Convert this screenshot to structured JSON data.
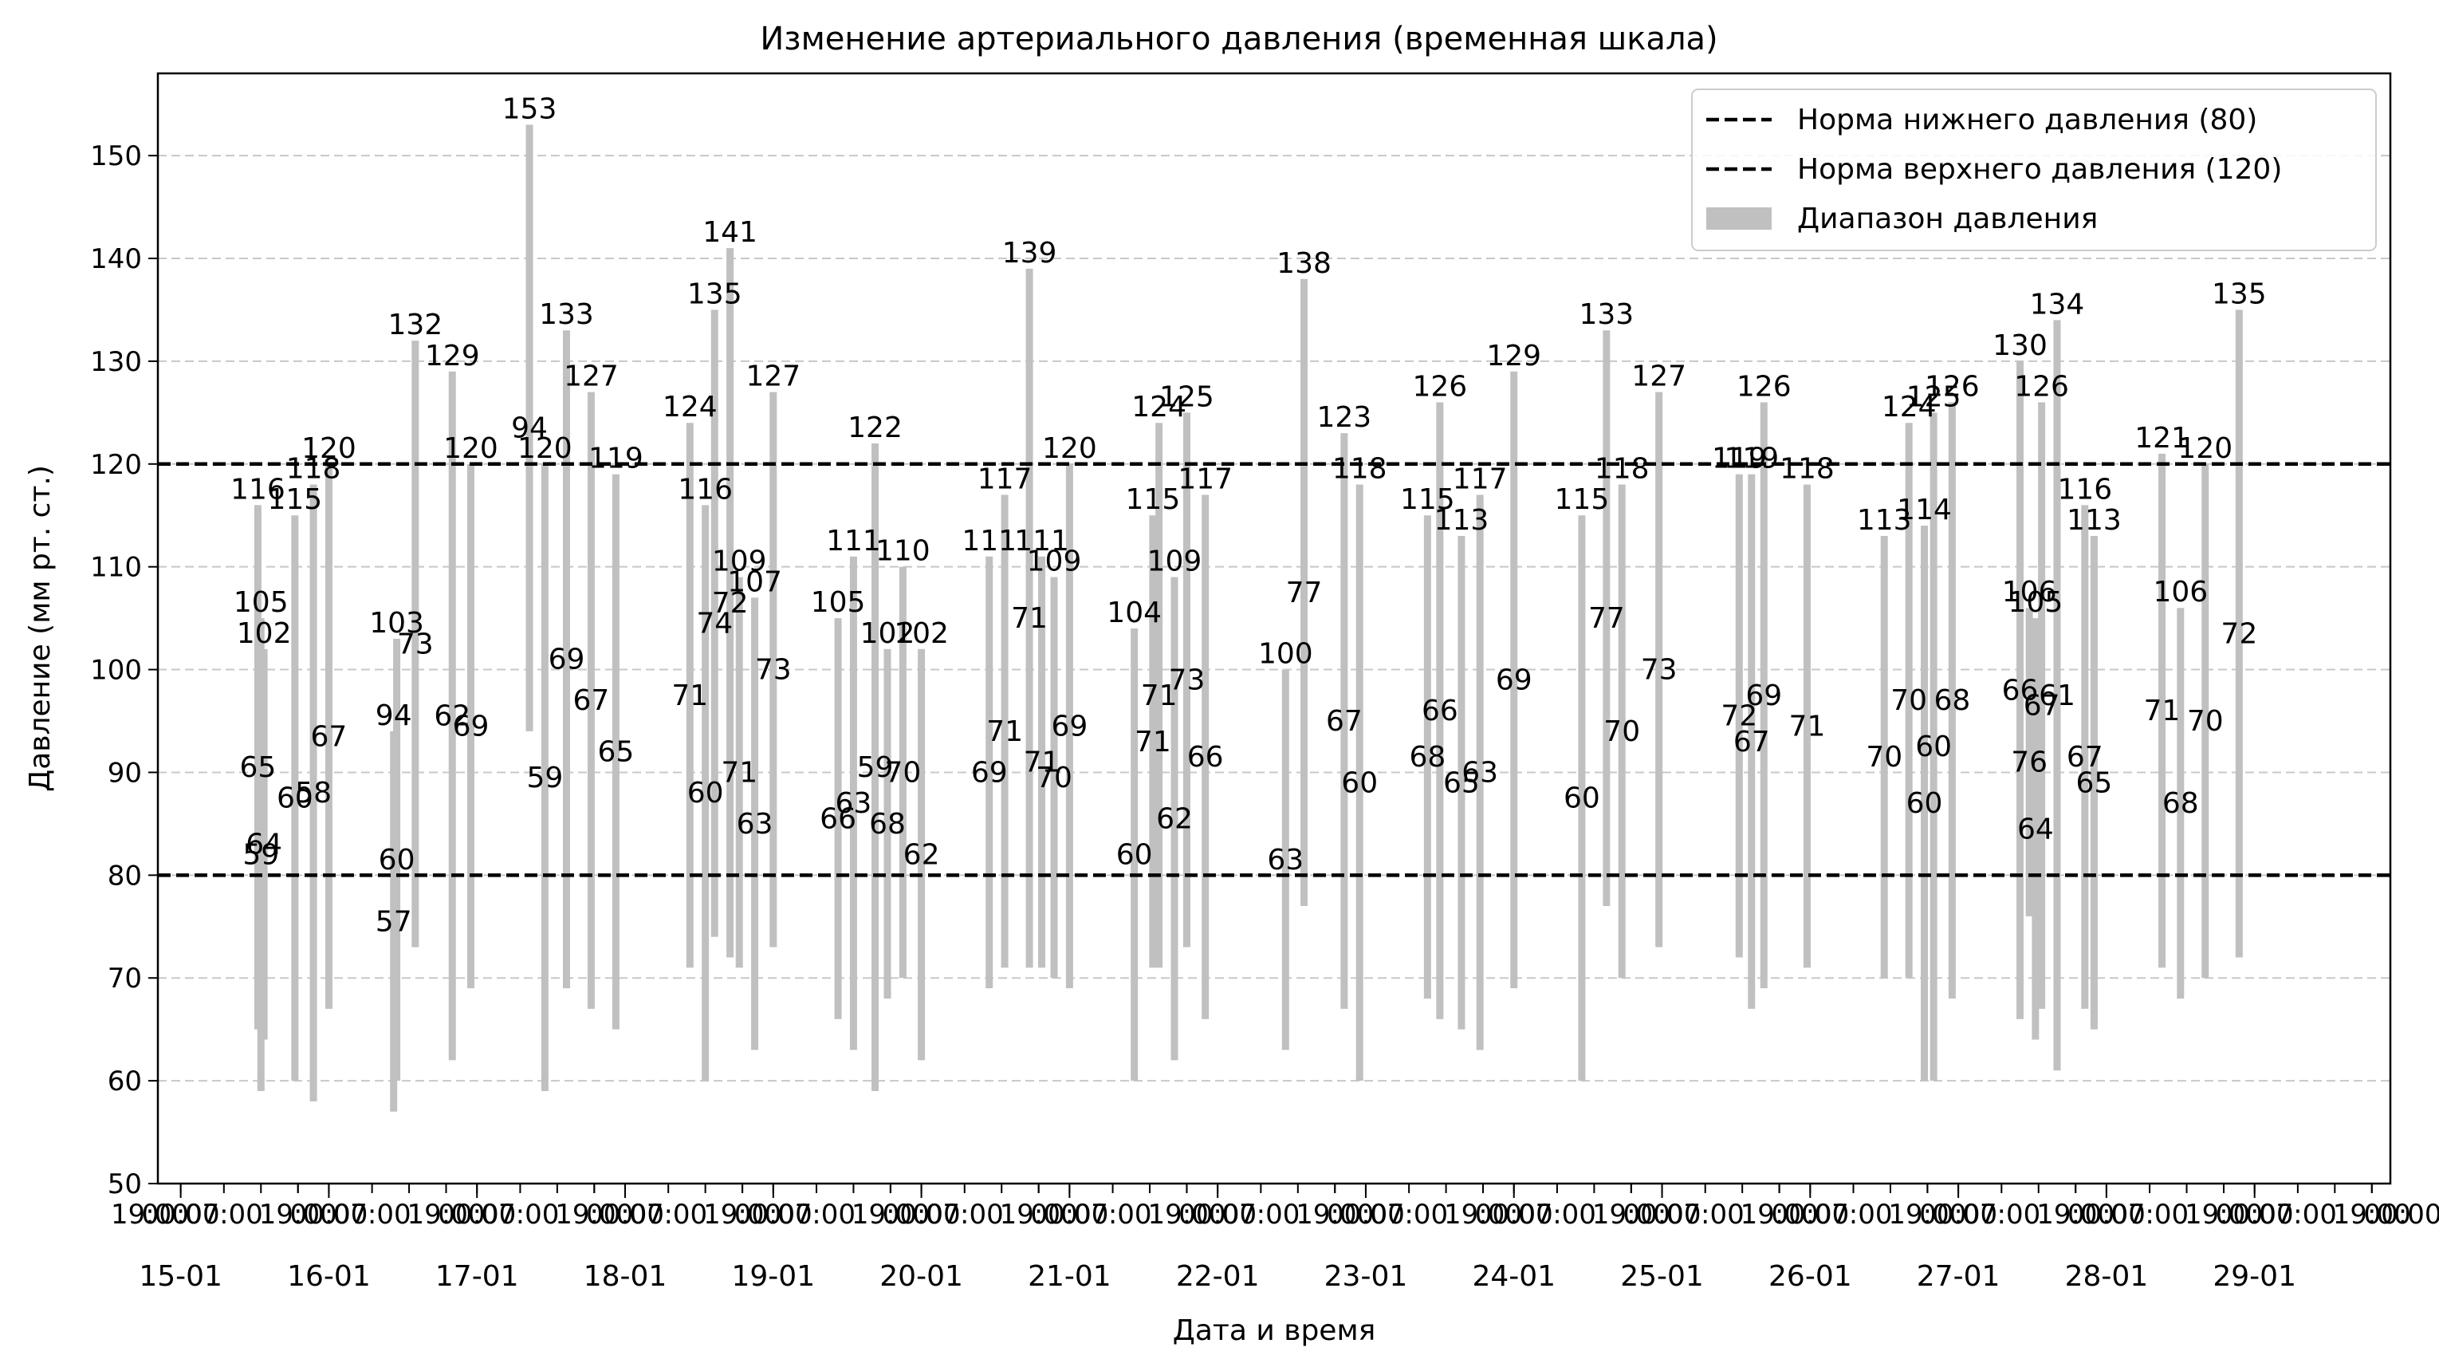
{
  "chart_data": {
    "type": "range-bar",
    "title": "Изменение артериального давления (временная шкала)",
    "xlabel": "Дата и время",
    "ylabel": "Давление (мм рт. ст.)",
    "ylim": [
      50,
      158
    ],
    "yticks": [
      50,
      60,
      70,
      80,
      90,
      100,
      110,
      120,
      130,
      140,
      150
    ],
    "xlim": [
      "2024-01-14T20:18",
      "2024-01-29T22:00"
    ],
    "xticks_dates": [
      "15-01",
      "16-01",
      "17-01",
      "18-01",
      "19-01",
      "20-01",
      "21-01",
      "22-01",
      "23-01",
      "24-01",
      "25-01",
      "26-01",
      "27-01",
      "28-01",
      "29-01"
    ],
    "xticks_hours": [
      "19:00",
      "00:00",
      "07:00",
      "13:00",
      "19:00"
    ],
    "grid": "y-dashed",
    "legend_position": "top-right",
    "legend": [
      {
        "label": "Норма нижнего давления (80)",
        "style": "dashed",
        "color": "#000000"
      },
      {
        "label": "Норма верхнего давления (120)",
        "style": "dashed",
        "color": "#000000"
      },
      {
        "label": "Диапазон давления",
        "style": "patch",
        "color": "#c0c0c0"
      }
    ],
    "reference_lines": [
      {
        "name": "Норма нижнего давления (80)",
        "y": 80,
        "color": "#000000"
      },
      {
        "name": "Норма верхнего давления (120)",
        "y": 120,
        "color": "#000000"
      }
    ],
    "bar_color": "#c0c0c0",
    "measurements": [
      {
        "t": "2024-01-15T12:30",
        "systolic": 116,
        "diastolic": 65
      },
      {
        "t": "2024-01-15T13:00",
        "systolic": 105,
        "diastolic": 59
      },
      {
        "t": "2024-01-15T13:30",
        "systolic": 102,
        "diastolic": 64
      },
      {
        "t": "2024-01-15T18:30",
        "systolic": 115,
        "diastolic": 60
      },
      {
        "t": "2024-01-15T21:30",
        "systolic": 118,
        "diastolic": 58
      },
      {
        "t": "2024-01-16T00:00",
        "systolic": 120,
        "diastolic": 67
      },
      {
        "t": "2024-01-16T10:30",
        "systolic": 94,
        "diastolic": 57
      },
      {
        "t": "2024-01-16T11:00",
        "systolic": 103,
        "diastolic": 60
      },
      {
        "t": "2024-01-16T14:00",
        "systolic": 132,
        "diastolic": 73
      },
      {
        "t": "2024-01-16T20:00",
        "systolic": 129,
        "diastolic": 62
      },
      {
        "t": "2024-01-16T23:00",
        "systolic": 120,
        "diastolic": 69
      },
      {
        "t": "2024-01-17T08:30",
        "systolic": 153,
        "diastolic": 94
      },
      {
        "t": "2024-01-17T11:00",
        "systolic": 120,
        "diastolic": 59
      },
      {
        "t": "2024-01-17T14:30",
        "systolic": 133,
        "diastolic": 69
      },
      {
        "t": "2024-01-17T18:30",
        "systolic": 127,
        "diastolic": 67
      },
      {
        "t": "2024-01-17T22:30",
        "systolic": 119,
        "diastolic": 65
      },
      {
        "t": "2024-01-18T10:30",
        "systolic": 124,
        "diastolic": 71
      },
      {
        "t": "2024-01-18T13:00",
        "systolic": 116,
        "diastolic": 60
      },
      {
        "t": "2024-01-18T14:30",
        "systolic": 135,
        "diastolic": 74
      },
      {
        "t": "2024-01-18T17:00",
        "systolic": 141,
        "diastolic": 72
      },
      {
        "t": "2024-01-18T18:30",
        "systolic": 109,
        "diastolic": 71
      },
      {
        "t": "2024-01-18T21:00",
        "systolic": 107,
        "diastolic": 63
      },
      {
        "t": "2024-01-19T00:00",
        "systolic": 127,
        "diastolic": 73
      },
      {
        "t": "2024-01-19T10:30",
        "systolic": 105,
        "diastolic": 66
      },
      {
        "t": "2024-01-19T13:00",
        "systolic": 111,
        "diastolic": 63
      },
      {
        "t": "2024-01-19T16:30",
        "systolic": 122,
        "diastolic": 59
      },
      {
        "t": "2024-01-19T18:30",
        "systolic": 102,
        "diastolic": 68
      },
      {
        "t": "2024-01-19T21:00",
        "systolic": 110,
        "diastolic": 70
      },
      {
        "t": "2024-01-20T00:00",
        "systolic": 102,
        "diastolic": 62
      },
      {
        "t": "2024-01-20T11:00",
        "systolic": 111,
        "diastolic": 69
      },
      {
        "t": "2024-01-20T13:30",
        "systolic": 117,
        "diastolic": 71
      },
      {
        "t": "2024-01-20T17:30",
        "systolic": 139,
        "diastolic": 71
      },
      {
        "t": "2024-01-20T19:30",
        "systolic": 111,
        "diastolic": 71
      },
      {
        "t": "2024-01-20T21:30",
        "systolic": 109,
        "diastolic": 70
      },
      {
        "t": "2024-01-21T00:00",
        "systolic": 120,
        "diastolic": 69
      },
      {
        "t": "2024-01-21T10:30",
        "systolic": 104,
        "diastolic": 60
      },
      {
        "t": "2024-01-21T13:30",
        "systolic": 115,
        "diastolic": 71
      },
      {
        "t": "2024-01-21T14:30",
        "systolic": 124,
        "diastolic": 71
      },
      {
        "t": "2024-01-21T17:00",
        "systolic": 109,
        "diastolic": 62
      },
      {
        "t": "2024-01-21T19:00",
        "systolic": 125,
        "diastolic": 73
      },
      {
        "t": "2024-01-21T22:00",
        "systolic": 117,
        "diastolic": 66
      },
      {
        "t": "2024-01-22T11:00",
        "systolic": 100,
        "diastolic": 63
      },
      {
        "t": "2024-01-22T14:00",
        "systolic": 138,
        "diastolic": 77
      },
      {
        "t": "2024-01-22T20:30",
        "systolic": 123,
        "diastolic": 67
      },
      {
        "t": "2024-01-22T23:00",
        "systolic": 118,
        "diastolic": 60
      },
      {
        "t": "2024-01-23T10:00",
        "systolic": 115,
        "diastolic": 68
      },
      {
        "t": "2024-01-23T12:00",
        "systolic": 126,
        "diastolic": 66
      },
      {
        "t": "2024-01-23T15:30",
        "systolic": 113,
        "diastolic": 65
      },
      {
        "t": "2024-01-23T18:30",
        "systolic": 117,
        "diastolic": 63
      },
      {
        "t": "2024-01-24T00:00",
        "systolic": 129,
        "diastolic": 69
      },
      {
        "t": "2024-01-24T11:00",
        "systolic": 115,
        "diastolic": 60
      },
      {
        "t": "2024-01-24T15:00",
        "systolic": 133,
        "diastolic": 77
      },
      {
        "t": "2024-01-24T17:30",
        "systolic": 118,
        "diastolic": 70
      },
      {
        "t": "2024-01-24T23:30",
        "systolic": 127,
        "diastolic": 73
      },
      {
        "t": "2024-01-25T12:30",
        "systolic": 119,
        "diastolic": 72
      },
      {
        "t": "2024-01-25T14:30",
        "systolic": 119,
        "diastolic": 67
      },
      {
        "t": "2024-01-25T16:30",
        "systolic": 126,
        "diastolic": 69
      },
      {
        "t": "2024-01-25T23:30",
        "systolic": 118,
        "diastolic": 71
      },
      {
        "t": "2024-01-26T12:00",
        "systolic": 113,
        "diastolic": 70
      },
      {
        "t": "2024-01-26T16:00",
        "systolic": 124,
        "diastolic": 70
      },
      {
        "t": "2024-01-26T18:30",
        "systolic": 114,
        "diastolic": 60
      },
      {
        "t": "2024-01-26T20:00",
        "systolic": 125,
        "diastolic": 60
      },
      {
        "t": "2024-01-26T23:00",
        "systolic": 126,
        "diastolic": 68
      },
      {
        "t": "2024-01-27T10:00",
        "systolic": 130,
        "diastolic": 66
      },
      {
        "t": "2024-01-27T11:30",
        "systolic": 106,
        "diastolic": 76
      },
      {
        "t": "2024-01-27T12:30",
        "systolic": 105,
        "diastolic": 64
      },
      {
        "t": "2024-01-27T13:30",
        "systolic": 126,
        "diastolic": 67
      },
      {
        "t": "2024-01-27T16:00",
        "systolic": 134,
        "diastolic": 61
      },
      {
        "t": "2024-01-27T20:30",
        "systolic": 116,
        "diastolic": 67
      },
      {
        "t": "2024-01-27T22:00",
        "systolic": 113,
        "diastolic": 65
      },
      {
        "t": "2024-01-28T09:00",
        "systolic": 121,
        "diastolic": 71
      },
      {
        "t": "2024-01-28T12:00",
        "systolic": 106,
        "diastolic": 68
      },
      {
        "t": "2024-01-28T16:00",
        "systolic": 120,
        "diastolic": 70
      },
      {
        "t": "2024-01-28T21:30",
        "systolic": 135,
        "diastolic": 72
      }
    ]
  }
}
